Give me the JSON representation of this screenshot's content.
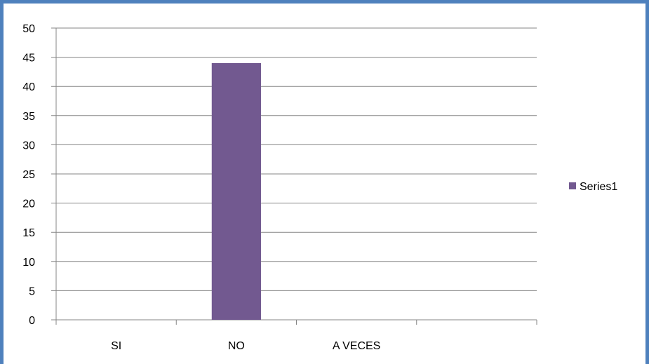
{
  "chart_data": {
    "type": "bar",
    "categories": [
      "SI",
      "NO",
      "A VECES",
      ""
    ],
    "series": [
      {
        "name": "Series1",
        "values": [
          0,
          44,
          0,
          0
        ],
        "color": "#725990"
      }
    ],
    "ylim": [
      0,
      50
    ],
    "yticks": [
      0,
      5,
      10,
      15,
      20,
      25,
      30,
      35,
      40,
      45,
      50
    ],
    "grid": true,
    "legend": "right",
    "frame_color": "#4f81bd"
  }
}
